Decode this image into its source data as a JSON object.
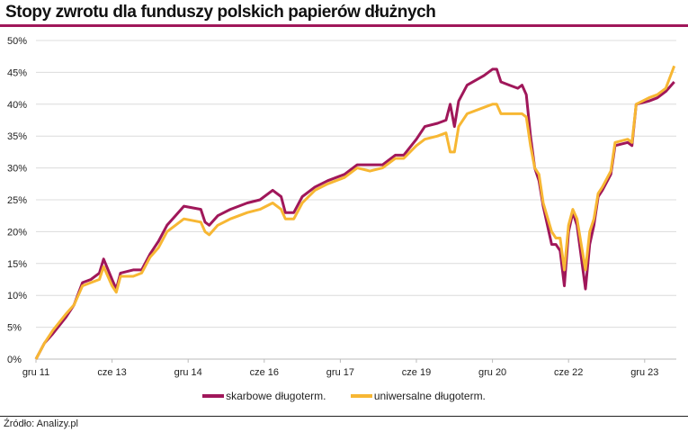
{
  "chart_data": {
    "type": "line",
    "title": "Stopy zwrotu dla funduszy polskich papierów dłużnych",
    "xlabel": "",
    "ylabel": "",
    "ylim": [
      0,
      50
    ],
    "y_ticks": [
      "0%",
      "5%",
      "10%",
      "15%",
      "20%",
      "25%",
      "30%",
      "35%",
      "40%",
      "45%",
      "50%"
    ],
    "x_ticks": [
      {
        "date": "2011-12",
        "label": "gru 11"
      },
      {
        "date": "2013-06",
        "label": "cze 13"
      },
      {
        "date": "2014-12",
        "label": "gru 14"
      },
      {
        "date": "2016-06",
        "label": "cze 16"
      },
      {
        "date": "2017-12",
        "label": "gru 17"
      },
      {
        "date": "2019-06",
        "label": "cze 19"
      },
      {
        "date": "2020-12",
        "label": "gru 20"
      },
      {
        "date": "2022-06",
        "label": "cze 22"
      },
      {
        "date": "2023-12",
        "label": "gru 23"
      }
    ],
    "grid": true,
    "legend_position": "bottom",
    "x": [
      "2011-12",
      "2012-02",
      "2012-04",
      "2012-07",
      "2012-09",
      "2012-11",
      "2013-01",
      "2013-03",
      "2013-04",
      "2013-06",
      "2013-07",
      "2013-08",
      "2013-11",
      "2014-01",
      "2014-03",
      "2014-05",
      "2014-07",
      "2014-09",
      "2014-11",
      "2015-03",
      "2015-04",
      "2015-05",
      "2015-07",
      "2015-10",
      "2016-02",
      "2016-05",
      "2016-08",
      "2016-10",
      "2016-11",
      "2017-01",
      "2017-03",
      "2017-06",
      "2017-09",
      "2018-01",
      "2018-04",
      "2018-07",
      "2018-10",
      "2019-01",
      "2019-03",
      "2019-06",
      "2019-08",
      "2019-11",
      "2020-01",
      "2020-02",
      "2020-03",
      "2020-04",
      "2020-06",
      "2020-10",
      "2020-12",
      "2021-01",
      "2021-02",
      "2021-04",
      "2021-06",
      "2021-07",
      "2021-08",
      "2021-09",
      "2021-10",
      "2021-11",
      "2021-12",
      "2022-02",
      "2022-03",
      "2022-04",
      "2022-05",
      "2022-06",
      "2022-07",
      "2022-08",
      "2022-09",
      "2022-10",
      "2022-11",
      "2022-12",
      "2023-01",
      "2023-02",
      "2023-04",
      "2023-05",
      "2023-08",
      "2023-09",
      "2023-10",
      "2024-01",
      "2024-03",
      "2024-05",
      "2024-07"
    ],
    "series": [
      {
        "name": "skarbowe długoterm.",
        "color": "#a0175a",
        "values": [
          0,
          2.5,
          4,
          6.5,
          8.5,
          12,
          12.5,
          13.5,
          15.7,
          12.5,
          11,
          13.5,
          14,
          14,
          16.5,
          18.5,
          21,
          22.5,
          24,
          23.5,
          21.5,
          21,
          22.5,
          23.5,
          24.5,
          25,
          26.5,
          25.5,
          23,
          23,
          25.5,
          27,
          28,
          29,
          30.5,
          30.5,
          30.5,
          32,
          32,
          34.5,
          36.5,
          37,
          37.5,
          40,
          36.5,
          40.5,
          43,
          44.5,
          45.5,
          45.5,
          43.5,
          43,
          42.5,
          43,
          41.5,
          35,
          30,
          28,
          24,
          18,
          18,
          17,
          11.5,
          20,
          23,
          21,
          16,
          11,
          18,
          21,
          25.5,
          26.5,
          29,
          33.5,
          34,
          33.5,
          40,
          40.5,
          41,
          42,
          43.5
        ]
      },
      {
        "name": "uniwersalne długoterm.",
        "color": "#f7b733",
        "values": [
          0,
          2.5,
          4.5,
          7,
          8.5,
          11.5,
          12,
          12.5,
          14.5,
          11.5,
          10.5,
          13,
          13,
          13.5,
          16,
          17.5,
          20,
          21,
          22,
          21.5,
          20,
          19.5,
          21,
          22,
          23,
          23.5,
          24.5,
          23.5,
          22,
          22,
          24.5,
          26.5,
          27.5,
          28.5,
          30,
          29.5,
          30,
          31.5,
          31.5,
          33.5,
          34.5,
          35,
          35.5,
          32.5,
          32.5,
          36.5,
          38.5,
          39.5,
          40,
          40,
          38.5,
          38.5,
          38.5,
          38.5,
          38,
          33.5,
          30,
          29,
          24.5,
          20,
          19,
          19,
          14,
          21,
          23.5,
          22,
          18,
          14,
          20,
          22,
          26,
          27,
          29.5,
          34,
          34.5,
          34,
          40,
          41,
          41.5,
          42.5,
          46
        ]
      }
    ]
  },
  "source": "Źródło: Analizy.pl"
}
